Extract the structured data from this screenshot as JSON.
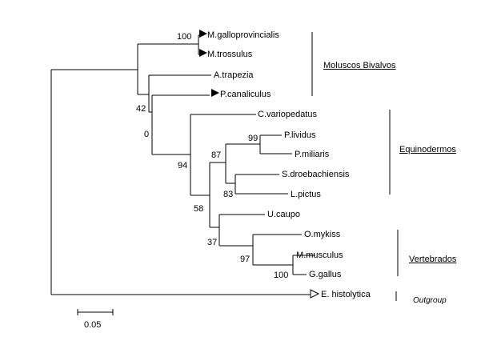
{
  "taxa": {
    "mgallo": "M.galloprovincialis",
    "mtross": "M.trossulus",
    "atrap": "A.trapezia",
    "pcanal": "P.canaliculus",
    "cvario": "C.variopedatus",
    "plividus": "P.lividus",
    "pmiliaris": "P.miliaris",
    "sdroe": "S.droebachiensis",
    "lpictus": "L.pictus",
    "ucaupo": "U.caupo",
    "omykiss": "O.mykiss",
    "mmusculus": "M.musculus",
    "ggallus": "G.gallus",
    "ehisto": "E. histolytica"
  },
  "bootstrap": {
    "b100_top": "100",
    "b42": "42",
    "b0": "0",
    "b94": "94",
    "b99": "99",
    "b87": "87",
    "b83": "83",
    "b58": "58",
    "b37": "37",
    "b97": "97",
    "b100_bottom": "100"
  },
  "groups": {
    "moluscos": "Moluscos Bivalvos",
    "equinodermos": "Equinodermos",
    "vertebrados": "Vertebrados",
    "outgroup": "Outgroup"
  },
  "scale": {
    "label": "0.05"
  },
  "icons": [
    "filled-triangle-marker-icon",
    "open-triangle-marker-icon"
  ]
}
